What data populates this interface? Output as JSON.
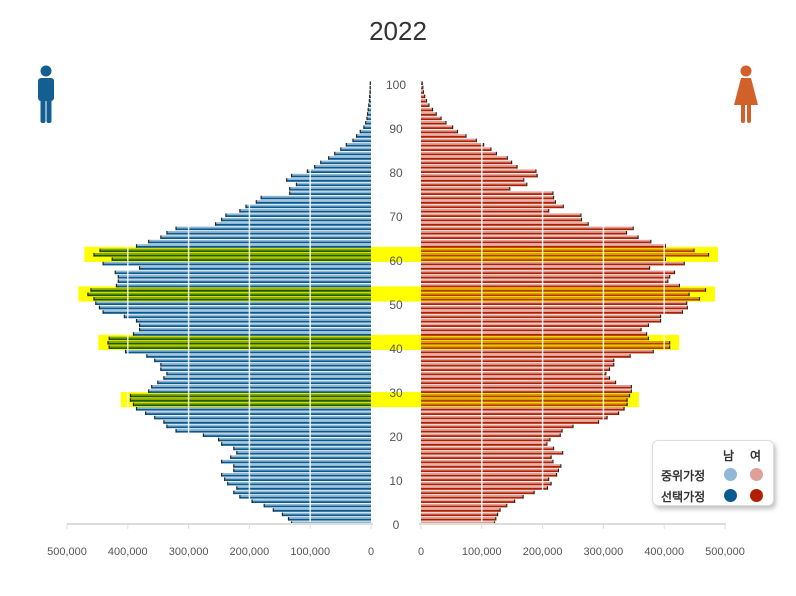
{
  "chart_data": {
    "type": "bar",
    "subtype": "population-pyramid",
    "title": "2022",
    "age_ticks": [
      "0",
      "10",
      "20",
      "30",
      "40",
      "50",
      "60",
      "70",
      "80",
      "90",
      "100"
    ],
    "x_ticks_left": [
      "500,000",
      "400,000",
      "300,000",
      "200,000",
      "100,000",
      "0"
    ],
    "x_ticks_right": [
      "0",
      "100,000",
      "200,000",
      "300,000",
      "400,000",
      "500,000"
    ],
    "xlim": [
      0,
      500000
    ],
    "ylim": [
      0,
      100
    ],
    "categories_age_from": 0,
    "highlighted_ages": [
      27,
      28,
      29,
      40,
      41,
      42,
      51,
      52,
      53,
      60,
      61,
      62
    ],
    "highlight_color": "#ffff00",
    "series": [
      {
        "name": "남",
        "color_median": "#8fb8d4",
        "color_choice": "#0b5a8f",
        "values": [
          130000,
          135000,
          145000,
          160000,
          175000,
          195000,
          215000,
          225000,
          220000,
          235000,
          240000,
          245000,
          225000,
          225000,
          245000,
          230000,
          220000,
          225000,
          245000,
          250000,
          275000,
          320000,
          335000,
          340000,
          355000,
          370000,
          385000,
          390000,
          395000,
          395000,
          365000,
          360000,
          350000,
          340000,
          335000,
          345000,
          345000,
          355000,
          368000,
          403000,
          430000,
          432000,
          430000,
          390000,
          380000,
          380000,
          385000,
          405000,
          440000,
          446000,
          452000,
          455000,
          465000,
          460000,
          418000,
          415000,
          415000,
          420000,
          380000,
          440000,
          425000,
          455000,
          445000,
          385000,
          365000,
          345000,
          335000,
          320000,
          255000,
          245000,
          238000,
          215000,
          205000,
          188000,
          180000,
          133000,
          133000,
          122000,
          138000,
          130000,
          104000,
          92000,
          82000,
          69000,
          59000,
          49000,
          40000,
          29000,
          23000,
          17000,
          11000,
          8000,
          6000,
          5000,
          4000,
          3000,
          2000,
          1500,
          1000,
          700,
          500
        ]
      },
      {
        "name": "여",
        "color_median": "#dfa097",
        "color_choice": "#b02000",
        "values": [
          120000,
          122000,
          125000,
          129000,
          140000,
          153000,
          167000,
          185000,
          207000,
          213000,
          209000,
          222000,
          225000,
          229000,
          216000,
          213000,
          232000,
          217000,
          206000,
          211000,
          228000,
          231000,
          249000,
          291000,
          305000,
          324000,
          333000,
          338000,
          338000,
          342000,
          345000,
          345000,
          319000,
          309000,
          303000,
          309000,
          316000,
          316000,
          343000,
          381000,
          408000,
          408000,
          373000,
          370000,
          361000,
          373000,
          393000,
          393000,
          429000,
          437000,
          436000,
          457000,
          440000,
          467000,
          424000,
          405000,
          408000,
          416000,
          375000,
          432000,
          401000,
          472000,
          448000,
          401000,
          377000,
          356000,
          337000,
          348000,
          274000,
          263000,
          262000,
          209000,
          233000,
          220000,
          217000,
          216000,
          145000,
          173000,
          168000,
          190000,
          188000,
          157000,
          148000,
          141000,
          123000,
          114000,
          102000,
          90000,
          73000,
          59000,
          51000,
          40000,
          32000,
          24000,
          18000,
          12000,
          8000,
          5000,
          3000,
          2000,
          1000
        ]
      }
    ],
    "grid": true,
    "legend": {
      "position": "bottom-right",
      "col_headers": [
        "남",
        "여"
      ],
      "rows": [
        "중위가정",
        "선택가정"
      ]
    }
  },
  "icons": {
    "male": "man-icon",
    "female": "woman-icon",
    "male_color": "#135f92",
    "female_color": "#d2602a"
  }
}
